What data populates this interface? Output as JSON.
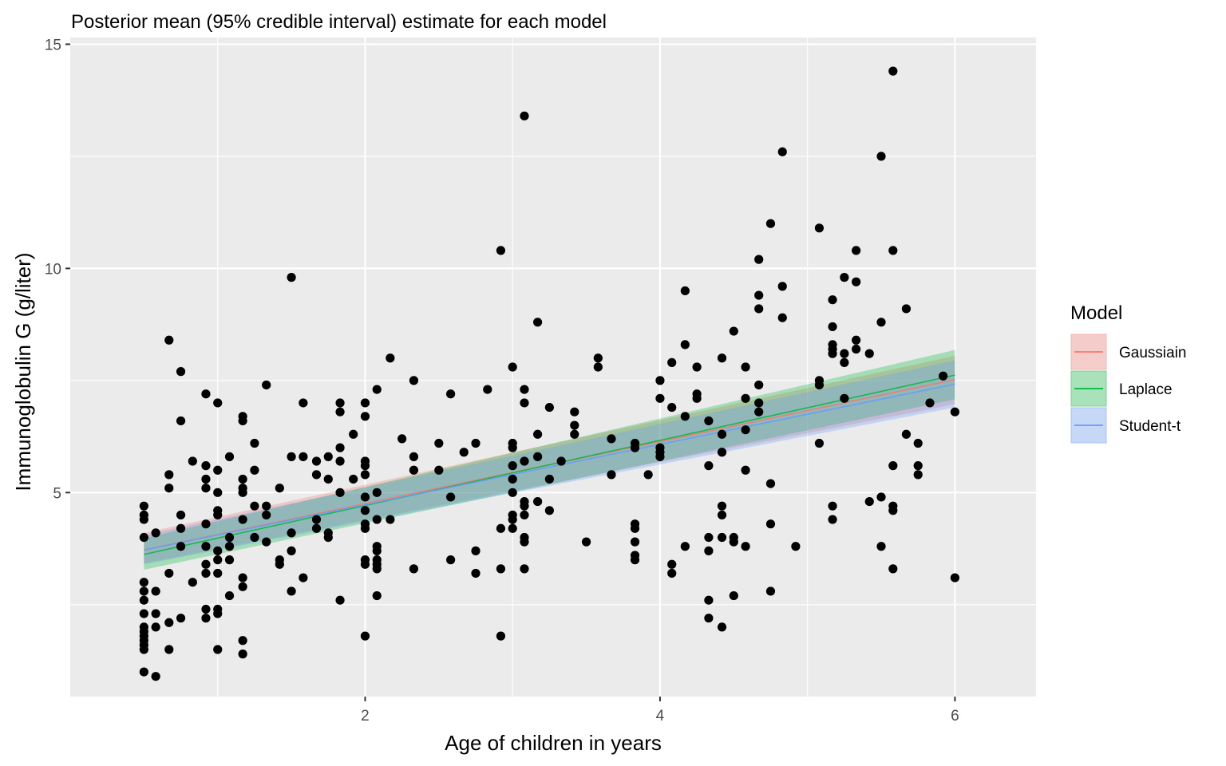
{
  "chart_data": {
    "type": "scatter",
    "title": "Posterior mean (95% credible interval) estimate for each model",
    "xlabel": "Age of children in years",
    "ylabel": "Immunoglobulin G (g/liter)",
    "xlim": [
      0.0,
      6.55
    ],
    "ylim": [
      0.45,
      15.15
    ],
    "xticks": [
      2,
      4,
      6
    ],
    "yticks": [
      5,
      10,
      15
    ],
    "grid": true,
    "legend": {
      "title": "Model",
      "position": "right"
    },
    "points": [
      [
        0.5,
        4.7
      ],
      [
        0.5,
        4.5
      ],
      [
        0.5,
        4.4
      ],
      [
        0.5,
        4.0
      ],
      [
        0.5,
        3.0
      ],
      [
        0.5,
        2.8
      ],
      [
        0.5,
        2.6
      ],
      [
        0.5,
        2.3
      ],
      [
        0.5,
        2.0
      ],
      [
        0.5,
        1.9
      ],
      [
        0.5,
        1.8
      ],
      [
        0.5,
        1.7
      ],
      [
        0.5,
        1.6
      ],
      [
        0.5,
        1.5
      ],
      [
        0.5,
        1.0
      ],
      [
        0.58,
        4.1
      ],
      [
        0.58,
        2.8
      ],
      [
        0.58,
        2.3
      ],
      [
        0.58,
        2.0
      ],
      [
        0.58,
        0.9
      ],
      [
        0.67,
        8.4
      ],
      [
        0.67,
        5.4
      ],
      [
        0.67,
        5.1
      ],
      [
        0.67,
        3.2
      ],
      [
        0.67,
        2.1
      ],
      [
        0.67,
        1.5
      ],
      [
        0.75,
        7.7
      ],
      [
        0.75,
        6.6
      ],
      [
        0.75,
        4.5
      ],
      [
        0.75,
        4.2
      ],
      [
        0.75,
        3.8
      ],
      [
        0.75,
        2.2
      ],
      [
        0.83,
        5.7
      ],
      [
        0.83,
        3.0
      ],
      [
        0.92,
        7.2
      ],
      [
        0.92,
        5.6
      ],
      [
        0.92,
        5.3
      ],
      [
        0.92,
        5.1
      ],
      [
        0.92,
        4.3
      ],
      [
        0.92,
        3.8
      ],
      [
        0.92,
        3.4
      ],
      [
        0.92,
        3.2
      ],
      [
        0.92,
        2.4
      ],
      [
        0.92,
        2.2
      ],
      [
        1.0,
        7.0
      ],
      [
        1.0,
        5.5
      ],
      [
        1.0,
        5.0
      ],
      [
        1.0,
        4.6
      ],
      [
        1.0,
        4.5
      ],
      [
        1.0,
        3.7
      ],
      [
        1.0,
        3.5
      ],
      [
        1.0,
        3.2
      ],
      [
        1.0,
        2.4
      ],
      [
        1.0,
        2.3
      ],
      [
        1.0,
        1.5
      ],
      [
        1.08,
        5.8
      ],
      [
        1.08,
        4.0
      ],
      [
        1.08,
        3.8
      ],
      [
        1.08,
        3.5
      ],
      [
        1.08,
        2.7
      ],
      [
        1.17,
        6.7
      ],
      [
        1.17,
        6.6
      ],
      [
        1.17,
        5.3
      ],
      [
        1.17,
        5.1
      ],
      [
        1.17,
        5.0
      ],
      [
        1.17,
        4.4
      ],
      [
        1.17,
        3.1
      ],
      [
        1.17,
        2.9
      ],
      [
        1.17,
        1.7
      ],
      [
        1.17,
        1.4
      ],
      [
        1.25,
        6.1
      ],
      [
        1.25,
        5.5
      ],
      [
        1.25,
        4.7
      ],
      [
        1.25,
        4.0
      ],
      [
        1.33,
        7.4
      ],
      [
        1.33,
        4.7
      ],
      [
        1.33,
        4.5
      ],
      [
        1.33,
        3.9
      ],
      [
        1.42,
        5.1
      ],
      [
        1.42,
        3.5
      ],
      [
        1.42,
        3.4
      ],
      [
        1.5,
        9.8
      ],
      [
        1.5,
        5.8
      ],
      [
        1.5,
        4.1
      ],
      [
        1.5,
        3.7
      ],
      [
        1.5,
        2.8
      ],
      [
        1.58,
        7.0
      ],
      [
        1.58,
        5.8
      ],
      [
        1.58,
        3.1
      ],
      [
        1.67,
        5.7
      ],
      [
        1.67,
        5.4
      ],
      [
        1.67,
        4.4
      ],
      [
        1.67,
        4.2
      ],
      [
        1.75,
        5.8
      ],
      [
        1.75,
        5.3
      ],
      [
        1.75,
        4.1
      ],
      [
        1.75,
        4.0
      ],
      [
        1.83,
        7.0
      ],
      [
        1.83,
        6.8
      ],
      [
        1.83,
        6.0
      ],
      [
        1.83,
        5.7
      ],
      [
        1.83,
        5.0
      ],
      [
        1.83,
        2.6
      ],
      [
        1.92,
        6.3
      ],
      [
        1.92,
        5.3
      ],
      [
        2.0,
        7.0
      ],
      [
        2.0,
        6.7
      ],
      [
        2.0,
        5.7
      ],
      [
        2.0,
        5.6
      ],
      [
        2.0,
        5.4
      ],
      [
        2.0,
        4.9
      ],
      [
        2.0,
        4.6
      ],
      [
        2.0,
        4.3
      ],
      [
        2.0,
        4.2
      ],
      [
        2.0,
        3.5
      ],
      [
        2.0,
        3.4
      ],
      [
        2.0,
        1.8
      ],
      [
        2.08,
        7.3
      ],
      [
        2.08,
        5.0
      ],
      [
        2.08,
        4.4
      ],
      [
        2.08,
        3.8
      ],
      [
        2.08,
        3.7
      ],
      [
        2.08,
        3.5
      ],
      [
        2.08,
        3.4
      ],
      [
        2.08,
        3.3
      ],
      [
        2.08,
        2.7
      ],
      [
        2.17,
        8.0
      ],
      [
        2.17,
        4.4
      ],
      [
        2.25,
        6.2
      ],
      [
        2.33,
        7.5
      ],
      [
        2.33,
        5.8
      ],
      [
        2.33,
        5.5
      ],
      [
        2.33,
        3.3
      ],
      [
        2.5,
        6.1
      ],
      [
        2.5,
        5.5
      ],
      [
        2.58,
        7.2
      ],
      [
        2.58,
        4.9
      ],
      [
        2.58,
        3.5
      ],
      [
        2.67,
        5.9
      ],
      [
        2.75,
        6.1
      ],
      [
        2.75,
        3.7
      ],
      [
        2.75,
        3.2
      ],
      [
        2.83,
        7.3
      ],
      [
        2.92,
        10.4
      ],
      [
        2.92,
        4.2
      ],
      [
        2.92,
        3.3
      ],
      [
        2.92,
        1.8
      ],
      [
        3.0,
        7.8
      ],
      [
        3.0,
        6.1
      ],
      [
        3.0,
        6.0
      ],
      [
        3.0,
        5.6
      ],
      [
        3.0,
        5.3
      ],
      [
        3.0,
        5.0
      ],
      [
        3.0,
        4.5
      ],
      [
        3.0,
        4.4
      ],
      [
        3.0,
        4.2
      ],
      [
        3.08,
        13.4
      ],
      [
        3.08,
        7.3
      ],
      [
        3.08,
        7.0
      ],
      [
        3.08,
        5.7
      ],
      [
        3.08,
        4.8
      ],
      [
        3.08,
        4.7
      ],
      [
        3.08,
        4.5
      ],
      [
        3.08,
        4.0
      ],
      [
        3.08,
        3.9
      ],
      [
        3.08,
        3.3
      ],
      [
        3.17,
        8.8
      ],
      [
        3.17,
        6.3
      ],
      [
        3.17,
        5.8
      ],
      [
        3.17,
        4.8
      ],
      [
        3.25,
        6.9
      ],
      [
        3.25,
        5.3
      ],
      [
        3.25,
        4.6
      ],
      [
        3.33,
        5.7
      ],
      [
        3.42,
        6.8
      ],
      [
        3.42,
        6.5
      ],
      [
        3.42,
        6.3
      ],
      [
        3.5,
        3.9
      ],
      [
        3.58,
        8.0
      ],
      [
        3.58,
        7.8
      ],
      [
        3.67,
        6.2
      ],
      [
        3.67,
        5.4
      ],
      [
        3.83,
        6.1
      ],
      [
        3.83,
        6.0
      ],
      [
        3.83,
        4.3
      ],
      [
        3.83,
        4.2
      ],
      [
        3.83,
        3.9
      ],
      [
        3.83,
        3.6
      ],
      [
        3.83,
        3.5
      ],
      [
        3.92,
        5.4
      ],
      [
        4.0,
        7.5
      ],
      [
        4.0,
        7.1
      ],
      [
        4.0,
        6.0
      ],
      [
        4.0,
        5.9
      ],
      [
        4.0,
        5.8
      ],
      [
        4.08,
        7.9
      ],
      [
        4.08,
        6.9
      ],
      [
        4.08,
        3.4
      ],
      [
        4.08,
        3.2
      ],
      [
        4.17,
        9.5
      ],
      [
        4.17,
        8.3
      ],
      [
        4.17,
        6.7
      ],
      [
        4.17,
        3.8
      ],
      [
        4.25,
        7.8
      ],
      [
        4.25,
        7.2
      ],
      [
        4.25,
        7.1
      ],
      [
        4.33,
        6.6
      ],
      [
        4.33,
        5.6
      ],
      [
        4.33,
        4.0
      ],
      [
        4.33,
        3.7
      ],
      [
        4.33,
        2.6
      ],
      [
        4.33,
        2.2
      ],
      [
        4.42,
        8.0
      ],
      [
        4.42,
        6.3
      ],
      [
        4.42,
        5.9
      ],
      [
        4.42,
        4.7
      ],
      [
        4.42,
        4.5
      ],
      [
        4.42,
        4.0
      ],
      [
        4.42,
        2.0
      ],
      [
        4.5,
        8.6
      ],
      [
        4.5,
        4.0
      ],
      [
        4.5,
        3.9
      ],
      [
        4.5,
        2.7
      ],
      [
        4.58,
        7.8
      ],
      [
        4.58,
        7.1
      ],
      [
        4.58,
        6.4
      ],
      [
        4.58,
        5.5
      ],
      [
        4.58,
        3.8
      ],
      [
        4.67,
        10.2
      ],
      [
        4.67,
        9.4
      ],
      [
        4.67,
        9.1
      ],
      [
        4.67,
        7.4
      ],
      [
        4.67,
        7.0
      ],
      [
        4.67,
        6.8
      ],
      [
        4.75,
        11.0
      ],
      [
        4.75,
        5.2
      ],
      [
        4.75,
        4.3
      ],
      [
        4.75,
        2.8
      ],
      [
        4.83,
        12.6
      ],
      [
        4.83,
        9.6
      ],
      [
        4.83,
        8.9
      ],
      [
        4.92,
        3.8
      ],
      [
        5.08,
        10.9
      ],
      [
        5.08,
        7.5
      ],
      [
        5.08,
        7.4
      ],
      [
        5.08,
        6.1
      ],
      [
        5.17,
        9.3
      ],
      [
        5.17,
        8.7
      ],
      [
        5.17,
        8.3
      ],
      [
        5.17,
        8.2
      ],
      [
        5.17,
        8.1
      ],
      [
        5.17,
        4.7
      ],
      [
        5.17,
        4.4
      ],
      [
        5.25,
        9.8
      ],
      [
        5.25,
        8.1
      ],
      [
        5.25,
        7.9
      ],
      [
        5.25,
        7.1
      ],
      [
        5.33,
        10.4
      ],
      [
        5.33,
        9.7
      ],
      [
        5.33,
        8.4
      ],
      [
        5.33,
        8.2
      ],
      [
        5.42,
        8.1
      ],
      [
        5.42,
        4.8
      ],
      [
        5.5,
        12.5
      ],
      [
        5.5,
        8.8
      ],
      [
        5.5,
        4.9
      ],
      [
        5.5,
        3.8
      ],
      [
        5.58,
        14.4
      ],
      [
        5.58,
        10.4
      ],
      [
        5.58,
        5.6
      ],
      [
        5.58,
        4.7
      ],
      [
        5.58,
        4.6
      ],
      [
        5.58,
        3.3
      ],
      [
        5.67,
        9.1
      ],
      [
        5.67,
        6.3
      ],
      [
        5.75,
        6.1
      ],
      [
        5.75,
        5.6
      ],
      [
        5.75,
        5.4
      ],
      [
        5.83,
        7.0
      ],
      [
        5.92,
        7.6
      ],
      [
        6.0,
        6.8
      ],
      [
        6.0,
        3.1
      ]
    ],
    "series": [
      {
        "name": "Gaussiain",
        "color": "#F8766D",
        "x": [
          0.5,
          6.0
        ],
        "mean": [
          3.72,
          7.52
        ],
        "lower": [
          3.42,
          6.97
        ],
        "upper": [
          4.1,
          8.05
        ]
      },
      {
        "name": "Laplace",
        "color": "#00BA38",
        "x": [
          0.5,
          6.0
        ],
        "mean": [
          3.62,
          7.62
        ],
        "lower": [
          3.28,
          7.08
        ],
        "upper": [
          3.98,
          8.18
        ]
      },
      {
        "name": "Student-t",
        "color": "#619CFF",
        "x": [
          0.5,
          6.0
        ],
        "mean": [
          3.72,
          7.42
        ],
        "lower": [
          3.4,
          6.9
        ],
        "upper": [
          4.05,
          7.95
        ]
      }
    ]
  }
}
